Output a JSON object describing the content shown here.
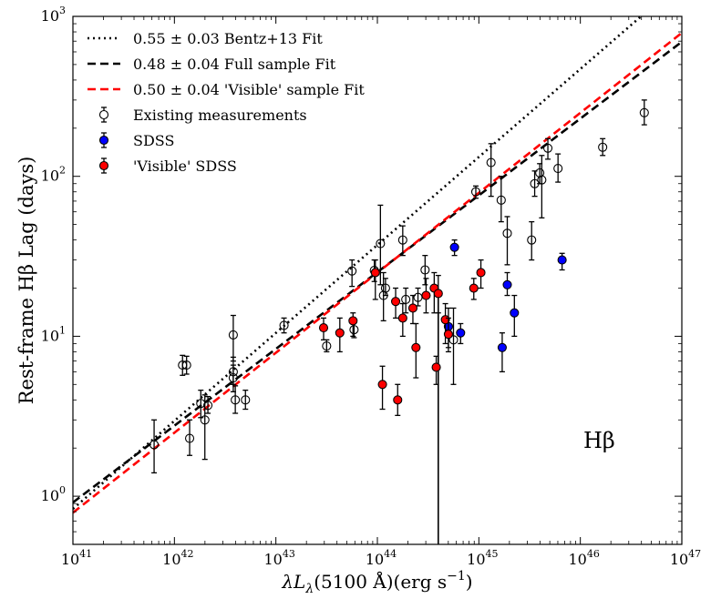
{
  "chart_data": {
    "type": "scatter",
    "title": "",
    "xlabel": "λL_λ(5100 Å)(erg s⁻¹)",
    "xlabel_parts": {
      "prefix": "λL",
      "sub": "λ",
      "mid": "(5100 Å)(erg s",
      "sup": "−1",
      "suffix": ")"
    },
    "ylabel": "Rest-frame Hβ Lag (days)",
    "annotation": "Hβ",
    "xscale": "log",
    "yscale": "log",
    "xlim_exp": [
      41,
      47
    ],
    "ylim": [
      0.5,
      1000
    ],
    "x_ticks": [
      {
        "exp": 41,
        "label": "41"
      },
      {
        "exp": 42,
        "label": "42"
      },
      {
        "exp": 43,
        "label": "43"
      },
      {
        "exp": 44,
        "label": "44"
      },
      {
        "exp": 45,
        "label": "45"
      },
      {
        "exp": 46,
        "label": "46"
      },
      {
        "exp": 47,
        "label": "47"
      }
    ],
    "y_ticks": [
      {
        "exp": 0,
        "label": "0"
      },
      {
        "exp": 1,
        "label": "1"
      },
      {
        "exp": 2,
        "label": "2"
      },
      {
        "exp": 3,
        "label": "3"
      }
    ],
    "tick_base": "10",
    "legend": {
      "position": "top-left",
      "entries": [
        {
          "label": "0.55 ± 0.03 Bentz+13 Fit",
          "style": "dotted",
          "color": "#000000"
        },
        {
          "label": "0.48 ± 0.04 Full sample Fit",
          "style": "dashed",
          "color": "#000000"
        },
        {
          "label": "0.50 ± 0.04 'Visible' sample Fit",
          "style": "dashed",
          "color": "#ff0000"
        },
        {
          "label": "Existing measurements",
          "style": "open-marker",
          "color": "#000000"
        },
        {
          "label": "SDSS",
          "style": "filled-marker",
          "color": "#0000ff"
        },
        {
          "label": "'Visible' SDSS",
          "style": "filled-marker",
          "color": "#ff0000"
        }
      ]
    },
    "fits": [
      {
        "name": "0.55 ± 0.03 Bentz+13 Fit",
        "slope": 0.55,
        "pivot_logL": 44.0,
        "logtau_at_pivot": 1.571,
        "color": "#000000",
        "dash": "2,4"
      },
      {
        "name": "0.48 ± 0.04 Full sample Fit",
        "slope": 0.48,
        "pivot_logL": 44.0,
        "logtau_at_pivot": 1.401,
        "color": "#000000",
        "dash": "9,5"
      },
      {
        "name": "0.50 ± 0.04 'Visible' sample Fit",
        "slope": 0.5,
        "pivot_logL": 44.0,
        "logtau_at_pivot": 1.397,
        "color": "#ff0000",
        "dash": "9,5"
      }
    ],
    "series": [
      {
        "name": "Existing measurements",
        "marker": "open",
        "color": "#000000",
        "points": [
          {
            "logL": 41.8,
            "lag": 2.1,
            "lo": 1.4,
            "hi": 3.0
          },
          {
            "logL": 42.08,
            "lag": 6.6,
            "lo": 5.7,
            "hi": 7.6
          },
          {
            "logL": 42.12,
            "lag": 6.6,
            "lo": 5.8,
            "hi": 7.5
          },
          {
            "logL": 42.15,
            "lag": 2.3,
            "lo": 1.8,
            "hi": 3.0
          },
          {
            "logL": 42.26,
            "lag": 3.8,
            "lo": 3.1,
            "hi": 4.6
          },
          {
            "logL": 42.3,
            "lag": 3.0,
            "lo": 1.7,
            "hi": 4.3
          },
          {
            "logL": 42.33,
            "lag": 3.7,
            "lo": 3.3,
            "hi": 4.2
          },
          {
            "logL": 42.58,
            "lag": 10.2,
            "lo": 7.0,
            "hi": 13.5
          },
          {
            "logL": 42.58,
            "lag": 6.0,
            "lo": 5.0,
            "hi": 7.4
          },
          {
            "logL": 42.58,
            "lag": 5.5,
            "lo": 4.5,
            "hi": 6.6
          },
          {
            "logL": 42.6,
            "lag": 4.0,
            "lo": 3.3,
            "hi": 4.9
          },
          {
            "logL": 42.7,
            "lag": 4.0,
            "lo": 3.5,
            "hi": 4.6
          },
          {
            "logL": 43.08,
            "lag": 11.7,
            "lo": 10.5,
            "hi": 13.0
          },
          {
            "logL": 43.5,
            "lag": 8.7,
            "lo": 8.0,
            "hi": 9.5
          },
          {
            "logL": 43.75,
            "lag": 25.6,
            "lo": 20.5,
            "hi": 30.0
          },
          {
            "logL": 43.77,
            "lag": 11.0,
            "lo": 9.8,
            "hi": 12.5
          },
          {
            "logL": 43.97,
            "lag": 25.8,
            "lo": 22.0,
            "hi": 30.0
          },
          {
            "logL": 44.03,
            "lag": 38.0,
            "lo": 21.0,
            "hi": 66.0
          },
          {
            "logL": 44.06,
            "lag": 18.0,
            "lo": 12.5,
            "hi": 25.0
          },
          {
            "logL": 44.08,
            "lag": 20.0,
            "lo": 18.0,
            "hi": 23.0
          },
          {
            "logL": 44.25,
            "lag": 40.0,
            "lo": 32.0,
            "hi": 49.0
          },
          {
            "logL": 44.28,
            "lag": 17.0,
            "lo": 14.0,
            "hi": 20.0
          },
          {
            "logL": 44.4,
            "lag": 17.5,
            "lo": 15.5,
            "hi": 20.0
          },
          {
            "logL": 44.47,
            "lag": 26.0,
            "lo": 21.0,
            "hi": 32.0
          },
          {
            "logL": 44.75,
            "lag": 9.5,
            "lo": 5.0,
            "hi": 15.0
          },
          {
            "logL": 44.97,
            "lag": 80.0,
            "lo": 73.0,
            "hi": 87.0
          },
          {
            "logL": 45.12,
            "lag": 122.0,
            "lo": 75.0,
            "hi": 160.0
          },
          {
            "logL": 45.22,
            "lag": 71.0,
            "lo": 52.0,
            "hi": 100.0
          },
          {
            "logL": 45.28,
            "lag": 44.0,
            "lo": 28.0,
            "hi": 56.0
          },
          {
            "logL": 45.52,
            "lag": 40.0,
            "lo": 30.0,
            "hi": 52.0
          },
          {
            "logL": 45.55,
            "lag": 90.0,
            "lo": 75.0,
            "hi": 108.0
          },
          {
            "logL": 45.6,
            "lag": 105.0,
            "lo": 90.0,
            "hi": 120.0
          },
          {
            "logL": 45.62,
            "lag": 95.0,
            "lo": 55.0,
            "hi": 135.0
          },
          {
            "logL": 45.68,
            "lag": 150.0,
            "lo": 128.0,
            "hi": 172.0
          },
          {
            "logL": 45.78,
            "lag": 112.0,
            "lo": 92.0,
            "hi": 138.0
          },
          {
            "logL": 46.22,
            "lag": 152.0,
            "lo": 135.0,
            "hi": 172.0
          },
          {
            "logL": 46.63,
            "lag": 250.0,
            "lo": 210.0,
            "hi": 300.0
          }
        ]
      },
      {
        "name": "SDSS",
        "marker": "filled",
        "color": "#0000ff",
        "points": [
          {
            "logL": 44.7,
            "lag": 11.5,
            "lo": 8.5,
            "hi": 15.0
          },
          {
            "logL": 44.76,
            "lag": 36.0,
            "lo": 32.0,
            "hi": 40.0
          },
          {
            "logL": 44.82,
            "lag": 10.5,
            "lo": 9.0,
            "hi": 12.0
          },
          {
            "logL": 45.23,
            "lag": 8.5,
            "lo": 6.0,
            "hi": 10.5
          },
          {
            "logL": 45.28,
            "lag": 21.0,
            "lo": 18.0,
            "hi": 25.0
          },
          {
            "logL": 45.35,
            "lag": 14.0,
            "lo": 10.0,
            "hi": 18.0
          },
          {
            "logL": 45.82,
            "lag": 30.0,
            "lo": 26.0,
            "hi": 33.0
          }
        ]
      },
      {
        "name": "'Visible' SDSS",
        "marker": "filled",
        "color": "#ff0000",
        "points": [
          {
            "logL": 43.47,
            "lag": 11.3,
            "lo": 9.5,
            "hi": 13.0
          },
          {
            "logL": 43.63,
            "lag": 10.5,
            "lo": 8.0,
            "hi": 13.0
          },
          {
            "logL": 43.76,
            "lag": 12.5,
            "lo": 10.0,
            "hi": 14.0
          },
          {
            "logL": 43.98,
            "lag": 25.0,
            "lo": 17.0,
            "hi": 30.0
          },
          {
            "logL": 44.05,
            "lag": 5.0,
            "lo": 3.5,
            "hi": 6.5
          },
          {
            "logL": 44.18,
            "lag": 16.5,
            "lo": 13.0,
            "hi": 20.0
          },
          {
            "logL": 44.2,
            "lag": 4.0,
            "lo": 3.2,
            "hi": 5.0
          },
          {
            "logL": 44.25,
            "lag": 13.0,
            "lo": 10.0,
            "hi": 16.0
          },
          {
            "logL": 44.35,
            "lag": 15.0,
            "lo": 12.0,
            "hi": 18.0
          },
          {
            "logL": 44.38,
            "lag": 8.5,
            "lo": 5.5,
            "hi": 12.0
          },
          {
            "logL": 44.48,
            "lag": 18.0,
            "lo": 14.0,
            "hi": 23.0
          },
          {
            "logL": 44.56,
            "lag": 20.0,
            "lo": 14.0,
            "hi": 25.0
          },
          {
            "logL": 44.58,
            "lag": 6.4,
            "lo": 5.0,
            "hi": 7.5
          },
          {
            "logL": 44.6,
            "lag": 18.5,
            "lo": 14.0,
            "hi": 24.0
          },
          {
            "logL": 44.67,
            "lag": 12.7,
            "lo": 9.0,
            "hi": 16.0
          },
          {
            "logL": 44.7,
            "lag": 10.3,
            "lo": 8.0,
            "hi": 13.0
          },
          {
            "logL": 44.95,
            "lag": 20.0,
            "lo": 17.0,
            "hi": 23.0
          },
          {
            "logL": 45.02,
            "lag": 25.0,
            "lo": 20.0,
            "hi": 30.0
          }
        ]
      }
    ]
  }
}
